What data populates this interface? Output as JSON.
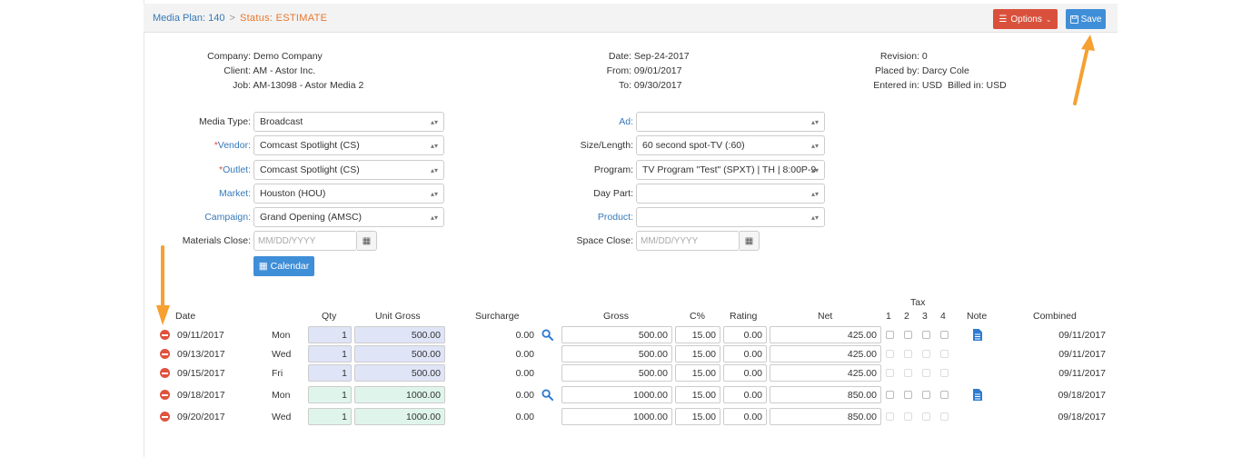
{
  "header": {
    "breadcrumb_link": "Media Plan: 140",
    "breadcrumb_sep": ">",
    "status": "Status: ESTIMATE",
    "options_label": "Options",
    "save_label": "Save"
  },
  "info_left": [
    {
      "label": "Company:",
      "value": "Demo Company"
    },
    {
      "label": "Client:",
      "value": "AM - Astor Inc."
    },
    {
      "label": "Job:",
      "value": "AM-13098 - Astor Media 2"
    }
  ],
  "info_mid": [
    {
      "label": "Date:",
      "value": "Sep-24-2017"
    },
    {
      "label": "From:",
      "value": "09/01/2017"
    },
    {
      "label": "To:",
      "value": "09/30/2017"
    }
  ],
  "info_right": [
    {
      "label": "Revision:",
      "value": "0"
    },
    {
      "label": "Placed by:",
      "value": "Darcy Cole"
    },
    {
      "label": "Entered in:",
      "value": "USD",
      "extra": "Billed in: USD"
    }
  ],
  "form_left": [
    {
      "label": "Media Type:",
      "value": "Broadcast",
      "required": false,
      "link": false
    },
    {
      "label": "Vendor:",
      "value": "Comcast Spotlight (CS)",
      "required": true,
      "link": true
    },
    {
      "label": "Outlet:",
      "value": "Comcast Spotlight (CS)",
      "required": true,
      "link": true
    },
    {
      "label": "Market:",
      "value": "Houston (HOU)",
      "required": false,
      "link": true
    },
    {
      "label": "Campaign:",
      "value": "Grand Opening (AMSC)",
      "required": false,
      "link": true
    }
  ],
  "form_right": [
    {
      "label": "Ad:",
      "value": "",
      "link": true
    },
    {
      "label": "Size/Length:",
      "value": "60 second spot-TV (:60)",
      "link": false
    },
    {
      "label": "Program:",
      "value": "TV Program \"Test\" (SPXT) | TH | 8:00P-9",
      "link": false
    },
    {
      "label": "Day Part:",
      "value": "",
      "link": false
    },
    {
      "label": "Product:",
      "value": "",
      "link": true
    }
  ],
  "materials_close": {
    "label": "Materials Close:",
    "placeholder": "MM/DD/YYYY"
  },
  "space_close": {
    "label": "Space Close:",
    "placeholder": "MM/DD/YYYY"
  },
  "calendar_label": "Calendar",
  "table": {
    "tax_header": "Tax",
    "headers": [
      "Date",
      "Qty",
      "Unit Gross",
      "Surcharge",
      "Gross",
      "C%",
      "Rating",
      "Net",
      "1",
      "2",
      "3",
      "4",
      "Note",
      "Combined"
    ],
    "rows": [
      {
        "date": "09/11/2017",
        "day": "Mon",
        "qty": "1",
        "unit_gross": "500.00",
        "surcharge": "0.00",
        "gross": "500.00",
        "c_pct": "15.00",
        "rating": "0.00",
        "net": "425.00",
        "combined": "09/11/2017",
        "search": true,
        "note": true,
        "color": "blue",
        "tax_active": true
      },
      {
        "date": "09/13/2017",
        "day": "Wed",
        "qty": "1",
        "unit_gross": "500.00",
        "surcharge": "0.00",
        "gross": "500.00",
        "c_pct": "15.00",
        "rating": "0.00",
        "net": "425.00",
        "combined": "09/11/2017",
        "search": false,
        "note": false,
        "color": "blue",
        "tax_active": false
      },
      {
        "date": "09/15/2017",
        "day": "Fri",
        "qty": "1",
        "unit_gross": "500.00",
        "surcharge": "0.00",
        "gross": "500.00",
        "c_pct": "15.00",
        "rating": "0.00",
        "net": "425.00",
        "combined": "09/11/2017",
        "search": false,
        "note": false,
        "color": "blue",
        "tax_active": false
      },
      {
        "date": "09/18/2017",
        "day": "Mon",
        "qty": "1",
        "unit_gross": "1000.00",
        "surcharge": "0.00",
        "gross": "1000.00",
        "c_pct": "15.00",
        "rating": "0.00",
        "net": "850.00",
        "combined": "09/18/2017",
        "search": true,
        "note": true,
        "color": "green",
        "tax_active": true
      },
      {
        "date": "09/20/2017",
        "day": "Wed",
        "qty": "1",
        "unit_gross": "1000.00",
        "surcharge": "0.00",
        "gross": "1000.00",
        "c_pct": "15.00",
        "rating": "0.00",
        "net": "850.00",
        "combined": "09/18/2017",
        "search": false,
        "note": false,
        "color": "green",
        "tax_active": false
      }
    ]
  },
  "colors": {
    "accent_blue": "#3f8ed8",
    "options_red": "#d9513c",
    "status_orange": "#e8772e",
    "annotation_arrow": "#f5a031"
  },
  "icons": [
    "list-icon",
    "chevron-down-icon",
    "save-icon",
    "calendar-icon",
    "remove-icon",
    "search-icon",
    "note-icon"
  ]
}
